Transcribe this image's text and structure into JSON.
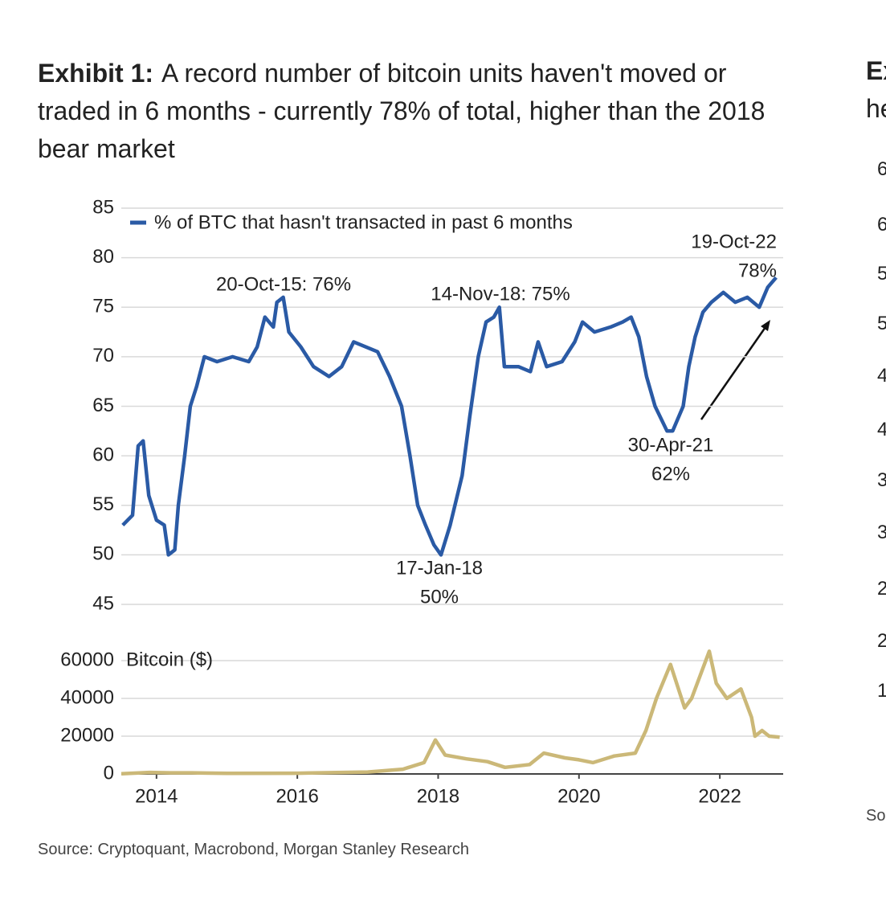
{
  "exhibit": {
    "label": "Exhibit 1:",
    "title": "A record number of bitcoin units haven't moved or traded in 6 months - currently 78% of total, higher than the 2018 bear market"
  },
  "chart_data": [
    {
      "type": "line",
      "xlim": [
        2013.5,
        2022.9
      ],
      "ylim": [
        45,
        85
      ],
      "yticks": [
        45,
        50,
        55,
        60,
        65,
        70,
        75,
        80,
        85
      ],
      "grid": true,
      "x": [
        2013.52,
        2013.66,
        2013.74,
        2013.81,
        2013.89,
        2014.0,
        2014.11,
        2014.17,
        2014.26,
        2014.31,
        2014.4,
        2014.48,
        2014.57,
        2014.68,
        2014.86,
        2015.08,
        2015.31,
        2015.43,
        2015.54,
        2015.66,
        2015.71,
        2015.8,
        2015.88,
        2016.05,
        2016.23,
        2016.45,
        2016.63,
        2016.8,
        2016.97,
        2017.14,
        2017.31,
        2017.48,
        2017.6,
        2017.71,
        2017.82,
        2017.94,
        2018.04,
        2018.17,
        2018.34,
        2018.45,
        2018.57,
        2018.68,
        2018.79,
        2018.87,
        2018.94,
        2019.14,
        2019.31,
        2019.42,
        2019.54,
        2019.76,
        2019.94,
        2020.05,
        2020.22,
        2020.45,
        2020.62,
        2020.74,
        2020.85,
        2020.96,
        2021.08,
        2021.25,
        2021.33,
        2021.48,
        2021.56,
        2021.65,
        2021.76,
        2021.88,
        2022.05,
        2022.22,
        2022.39,
        2022.56,
        2022.68,
        2022.8
      ],
      "series": [
        {
          "name": "% of BTC that hasn't transacted in past 6 months",
          "color": "#2a5aa5",
          "values": [
            53,
            54,
            61,
            61.5,
            56,
            53.5,
            53,
            50,
            50.5,
            55,
            60,
            65,
            67,
            70,
            69.5,
            70,
            69.5,
            71,
            74,
            73,
            75.5,
            76,
            72.5,
            71,
            69,
            68,
            69,
            71.5,
            71,
            70.5,
            68,
            65,
            60,
            55,
            53,
            51,
            50,
            53,
            58,
            64,
            70,
            73.5,
            74,
            75,
            69,
            69,
            68.5,
            71.5,
            69,
            69.5,
            71.5,
            73.5,
            72.5,
            73,
            73.5,
            74,
            72,
            68,
            65,
            62.5,
            62.5,
            65,
            69,
            72,
            74.5,
            75.5,
            76.5,
            75.5,
            76,
            75,
            77,
            78
          ]
        }
      ],
      "legend": "top-left",
      "annotations": [
        [
          "20-Oct-15: 76%"
        ],
        [
          "14-Nov-18: 75%"
        ],
        [
          "17-Jan-18",
          "50%"
        ],
        [
          "30-Apr-21",
          "62%"
        ],
        [
          "19-Oct-22",
          "78%"
        ]
      ]
    },
    {
      "type": "line",
      "xlim": [
        2013.5,
        2022.9
      ],
      "xticks": [
        2014,
        2016,
        2018,
        2020,
        2022
      ],
      "ylim": [
        0,
        60000
      ],
      "yticks": [
        0,
        20000,
        40000,
        60000
      ],
      "grid": true,
      "x": [
        2013.5,
        2013.9,
        2014.2,
        2014.5,
        2015.0,
        2016.0,
        2017.0,
        2017.5,
        2017.8,
        2017.96,
        2018.1,
        2018.4,
        2018.7,
        2018.95,
        2019.3,
        2019.5,
        2019.8,
        2020.0,
        2020.2,
        2020.5,
        2020.8,
        2020.95,
        2021.1,
        2021.3,
        2021.5,
        2021.6,
        2021.85,
        2021.95,
        2022.1,
        2022.3,
        2022.45,
        2022.5,
        2022.6,
        2022.7,
        2022.85
      ],
      "series": [
        {
          "name": "Bitcoin ($)",
          "color": "#cbb878",
          "values": [
            100,
            800,
            600,
            600,
            300,
            400,
            1000,
            2500,
            6000,
            18000,
            10000,
            8000,
            6500,
            3500,
            5000,
            11000,
            8500,
            7500,
            6000,
            9500,
            11000,
            23000,
            40000,
            58000,
            35000,
            40000,
            65000,
            48000,
            40000,
            45000,
            30000,
            20000,
            23000,
            20000,
            19500
          ]
        }
      ]
    }
  ],
  "source": "Source: Cryptoquant, Macrobond, Morgan Stanley Research",
  "next_exhibit": {
    "title_fragments": [
      "Ex",
      "he"
    ],
    "tick_fragments": [
      "6",
      "6",
      "5",
      "5",
      "4",
      "4",
      "3",
      "3",
      "2",
      "2",
      "1"
    ],
    "source_fragment": "So"
  }
}
